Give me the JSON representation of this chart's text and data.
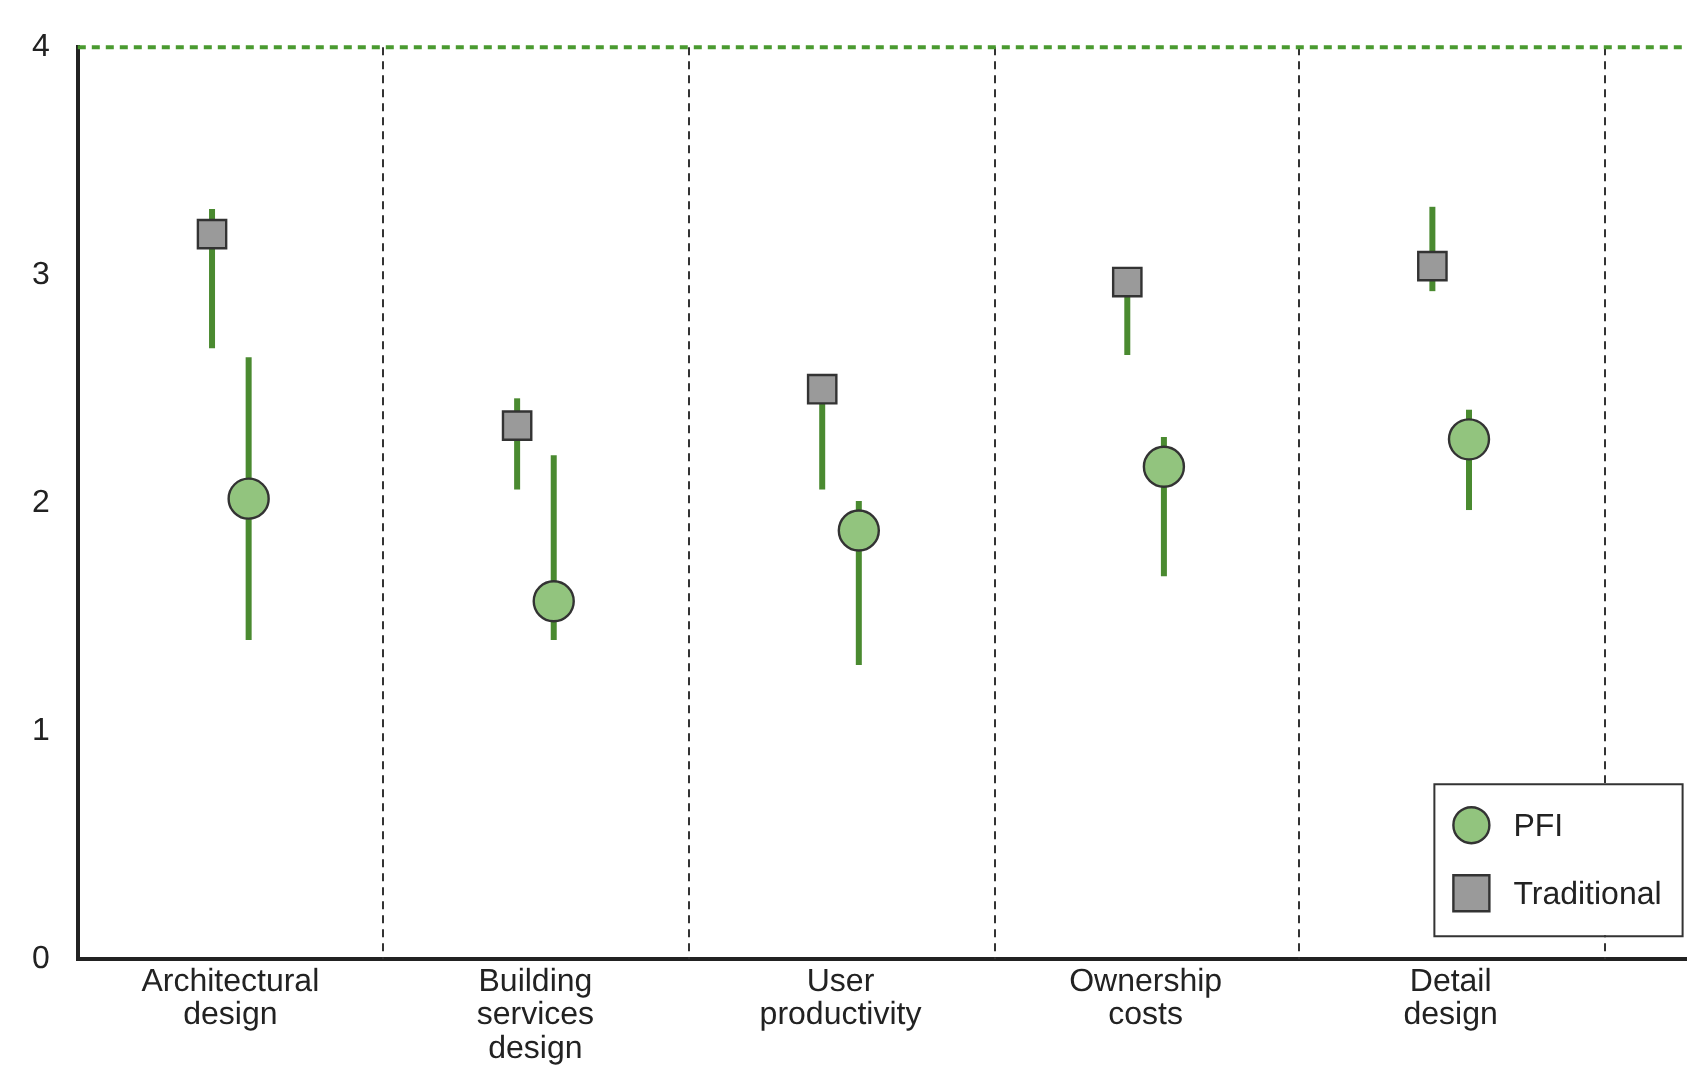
{
  "chart_data": {
    "type": "scatter",
    "categories": [
      "Architectural design",
      "Building services design",
      "User productivity",
      "Ownership costs",
      "Detail design"
    ],
    "series": [
      {
        "name": "PFI",
        "color": "#92c47e",
        "marker": "circle",
        "values": [
          2.02,
          1.57,
          1.88,
          2.16,
          2.28
        ],
        "errors": [
          [
            1.4,
            2.64
          ],
          [
            1.4,
            2.21
          ],
          [
            1.29,
            2.01
          ],
          [
            1.68,
            2.29
          ],
          [
            1.97,
            2.41
          ]
        ]
      },
      {
        "name": "Traditional",
        "color": "#9a9a9a",
        "marker": "square",
        "values": [
          3.18,
          2.34,
          2.5,
          2.97,
          3.04
        ],
        "errors": [
          [
            2.68,
            3.29
          ],
          [
            2.06,
            2.46
          ],
          [
            2.06,
            2.5
          ],
          [
            2.65,
            2.97
          ],
          [
            2.93,
            3.3
          ]
        ]
      }
    ],
    "ylim": [
      0,
      4
    ],
    "yticks": [
      0,
      1,
      2,
      3,
      4
    ],
    "grid": "x",
    "legend": "bottom right",
    "ref_lines": [
      {
        "axis": "y",
        "value": 4,
        "color": "#4a9a30",
        "line_style": "dashed"
      }
    ]
  }
}
